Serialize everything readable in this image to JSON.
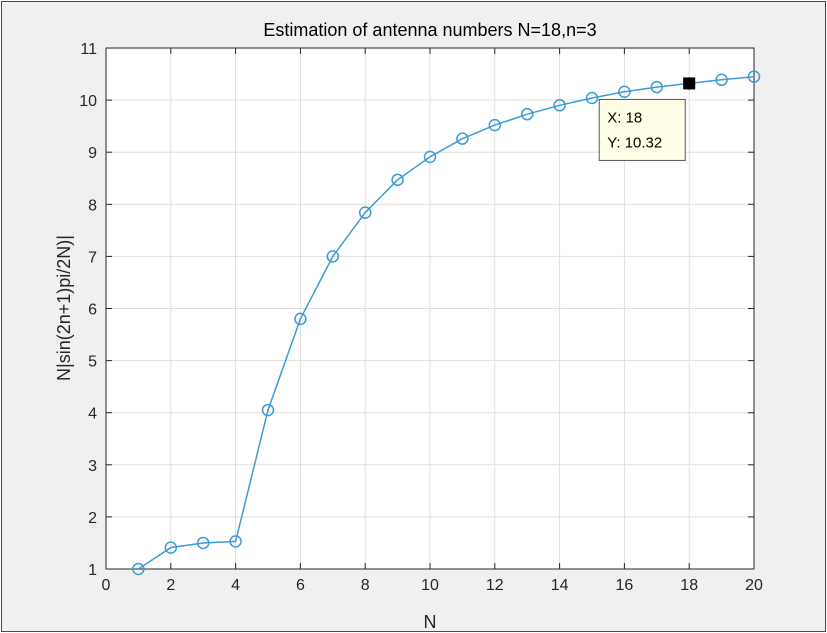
{
  "chart_data": {
    "type": "line",
    "title": "Estimation of antenna numbers N=18,n=3",
    "xlabel": "N",
    "ylabel": "N|sin(2n+1)pi/2N)|",
    "xlim": [
      0,
      20
    ],
    "ylim": [
      1,
      11
    ],
    "xticks": [
      0,
      2,
      4,
      6,
      8,
      10,
      12,
      14,
      16,
      18,
      20
    ],
    "yticks": [
      1,
      2,
      3,
      4,
      5,
      6,
      7,
      8,
      9,
      10,
      11
    ],
    "grid": true,
    "marker": "circle",
    "series": [
      {
        "x": [
          1,
          2,
          3,
          4,
          5,
          6,
          7,
          8,
          9,
          10,
          11,
          12,
          13,
          14,
          15,
          16,
          17,
          18,
          19,
          20
        ],
        "y": [
          1.0,
          1.41,
          1.5,
          1.53,
          4.05,
          5.8,
          7.0,
          7.84,
          8.47,
          8.91,
          9.26,
          9.52,
          9.73,
          9.9,
          10.04,
          10.16,
          10.25,
          10.32,
          10.39,
          10.45
        ]
      }
    ],
    "datatip": {
      "x": 18,
      "y": 10.32,
      "x_label": "X: 18",
      "y_label": "Y: 10.32"
    },
    "colors": {
      "line": "#3d9bd6",
      "marker": "#3d9bd6",
      "grid": "#dfdfdf",
      "axes": "#262626",
      "datatip_bg": "#ffffe8",
      "datatip_marker": "#000000"
    }
  }
}
